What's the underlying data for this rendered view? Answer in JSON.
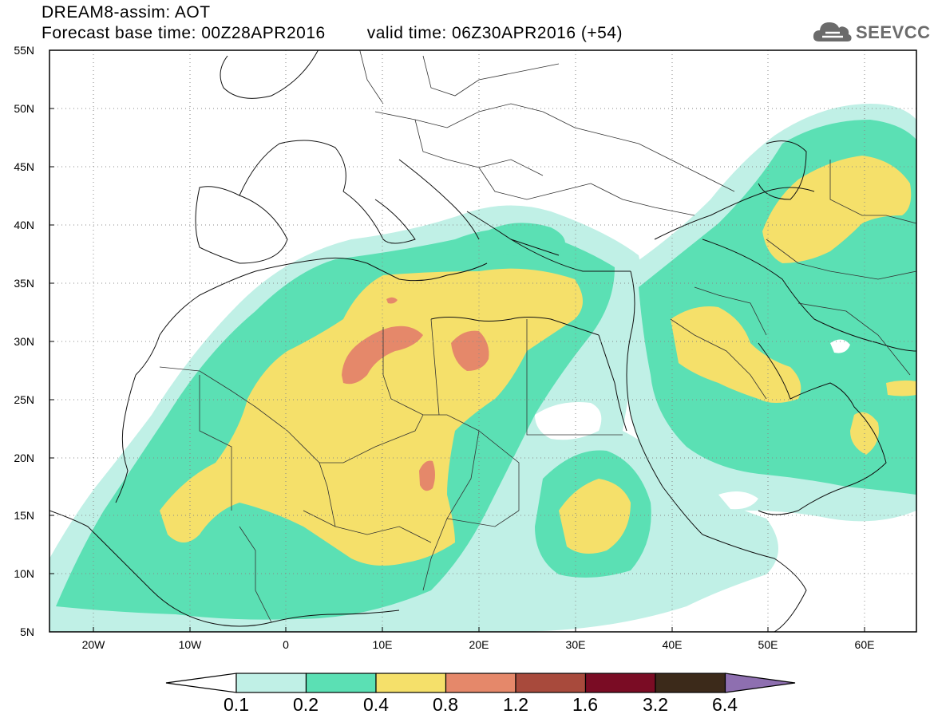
{
  "header": {
    "title_line1": "DREAM8-assim: AOT",
    "base_time": "Forecast base time: 00Z28APR2016",
    "valid_time": "valid time: 06Z30APR2016 (+54)"
  },
  "logo": {
    "text": "SEEVCCC",
    "icon": "cloud-icon"
  },
  "map": {
    "lat_labels": [
      "55N",
      "50N",
      "45N",
      "40N",
      "35N",
      "30N",
      "25N",
      "20N",
      "15N",
      "10N",
      "5N"
    ],
    "lon_labels": [
      "20W",
      "10W",
      "0",
      "10E",
      "20E",
      "30E",
      "40E",
      "50E",
      "60E"
    ],
    "lat_values": [
      55,
      50,
      45,
      40,
      35,
      30,
      25,
      20,
      15,
      10,
      5
    ],
    "lon_values": [
      -20,
      -10,
      0,
      10,
      20,
      30,
      40,
      50,
      60
    ],
    "lon_range": [
      -25,
      65
    ],
    "lat_range": [
      5,
      55
    ],
    "grid": "dotted"
  },
  "colorbar": {
    "labels": [
      "0.1",
      "0.2",
      "0.4",
      "0.8",
      "1.2",
      "1.6",
      "3.2",
      "6.4"
    ],
    "colors": [
      "#ffffff",
      "#c0f0e6",
      "#5be0b4",
      "#f5e06a",
      "#e5886a",
      "#a84a3c",
      "#7a0c24",
      "#3c2a1a",
      "#8e6fb0"
    ]
  }
}
